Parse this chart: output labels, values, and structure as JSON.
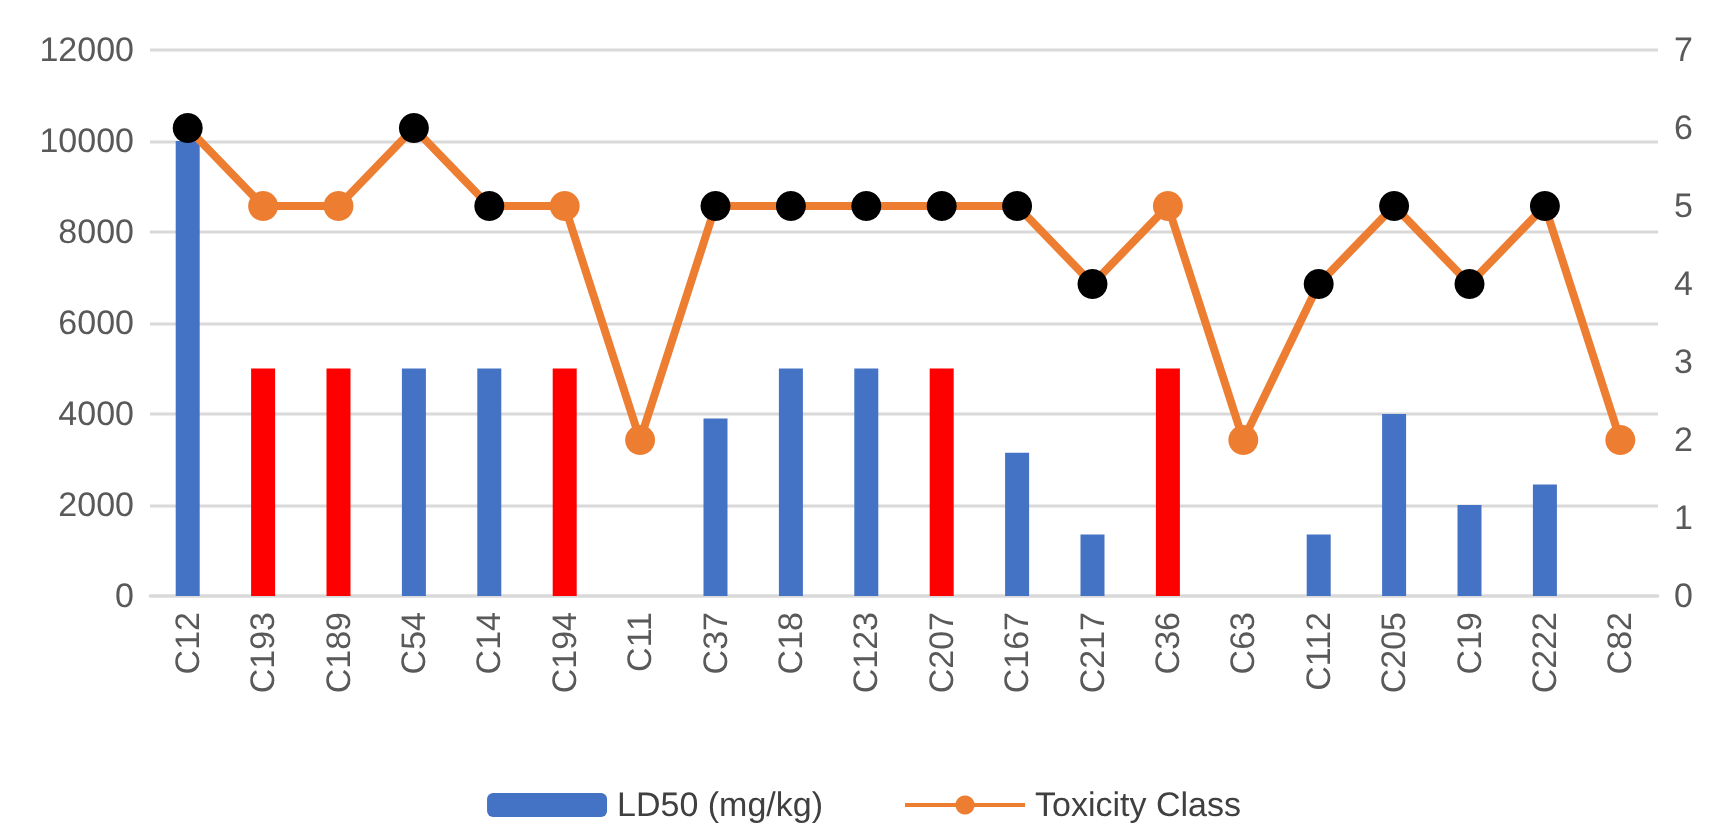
{
  "chart_data": {
    "type": "bar",
    "categories": [
      "C12",
      "C193",
      "C189",
      "C54",
      "C14",
      "C194",
      "C11",
      "C37",
      "C18",
      "C123",
      "C207",
      "C167",
      "C217",
      "C36",
      "C63",
      "C112",
      "C205",
      "C19",
      "C222",
      "C82"
    ],
    "series": [
      {
        "name": "LD50 (mg/kg)",
        "color": "#4472c4",
        "colors": [
          "#4472c4",
          "#ff0000",
          "#ff0000",
          "#4472c4",
          "#4472c4",
          "#ff0000",
          "#4472c4",
          "#4472c4",
          "#4472c4",
          "#4472c4",
          "#ff0000",
          "#4472c4",
          "#4472c4",
          "#ff0000",
          "#4472c4",
          "#4472c4",
          "#4472c4",
          "#4472c4",
          "#4472c4",
          "#4472c4"
        ],
        "values": [
          10000,
          5000,
          5000,
          5000,
          5000,
          5000,
          null,
          3900,
          5000,
          5000,
          5000,
          3150,
          1350,
          5000,
          null,
          1350,
          4000,
          2000,
          2450,
          null
        ]
      },
      {
        "name": "Toxicity Class",
        "type": "line",
        "axis": "y2",
        "color": "#ed7d31",
        "colors": [
          "#000000",
          "#ed7d31",
          "#ed7d31",
          "#000000",
          "#000000",
          "#ed7d31",
          "#ed7d31",
          "#000000",
          "#000000",
          "#000000",
          "#000000",
          "#000000",
          "#000000",
          "#ed7d31",
          "#ed7d31",
          "#000000",
          "#000000",
          "#000000",
          "#000000",
          "#ed7d31"
        ],
        "marker": "circle",
        "values": [
          6,
          5,
          5,
          6,
          5,
          5,
          2,
          5,
          5,
          5,
          5,
          5,
          4,
          5,
          2,
          4,
          5,
          4,
          5,
          2
        ]
      }
    ],
    "ylim": [
      0,
      12000
    ],
    "yticks": [
      0,
      2000,
      4000,
      6000,
      8000,
      10000,
      12000
    ],
    "y2lim": [
      0,
      7
    ],
    "y2ticks": [
      0,
      1,
      2,
      3,
      4,
      5,
      6,
      7
    ],
    "grid": "y",
    "legend": "bottom"
  }
}
